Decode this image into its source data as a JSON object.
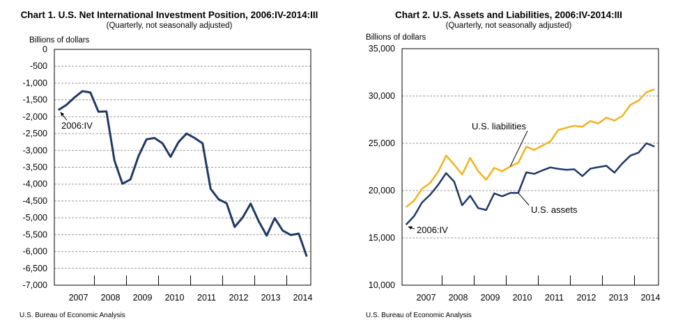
{
  "charts": [
    {
      "title": "Chart 1. U.S. Net International Investment Position, 2006:IV-2014:III",
      "subtitle": "(Quarterly,  not seasonally  adjusted)",
      "source": "U.S. Bureau of Economic Analysis"
    },
    {
      "title": "Chart 2. U.S. Assets and Liabilities, 2006:IV-2014:III",
      "subtitle": "(Quarterly,  not seasonally  adjusted)",
      "source": "U.S. Bureau of Economic Analysis"
    }
  ],
  "chart_data": [
    {
      "type": "line",
      "title": "Chart 1. U.S. Net International Investment Position, 2006:IV-2014:III",
      "subtitle": "(Quarterly,  not seasonally  adjusted)",
      "ylabel": "Billions  of dollars",
      "ylim": [
        -7000,
        0
      ],
      "yticks": [
        0,
        -500,
        -1000,
        -1500,
        -2000,
        -2500,
        -3000,
        -3500,
        -4000,
        -4500,
        -5000,
        -5500,
        -6000,
        -6500,
        -7000
      ],
      "ytick_labels": [
        "0",
        "-500",
        "-1,000",
        "-1,500",
        "-2,000",
        "-2,500",
        "-3,000",
        "-3,500",
        "-4,000",
        "-4,500",
        "-5,000",
        "-5,500",
        "-6,000",
        "-6,500",
        "-7,000"
      ],
      "x": [
        "2006:IV",
        "2007:I",
        "2007:II",
        "2007:III",
        "2007:IV",
        "2008:I",
        "2008:II",
        "2008:III",
        "2008:IV",
        "2009:I",
        "2009:II",
        "2009:III",
        "2009:IV",
        "2010:I",
        "2010:II",
        "2010:III",
        "2010:IV",
        "2011:I",
        "2011:II",
        "2011:III",
        "2011:IV",
        "2012:I",
        "2012:II",
        "2012:III",
        "2012:IV",
        "2013:I",
        "2013:II",
        "2013:III",
        "2013:IV",
        "2014:I",
        "2014:II",
        "2014:III"
      ],
      "x_year_labels": [
        "2007",
        "2008",
        "2009",
        "2010",
        "2011",
        "2012",
        "2013",
        "2014"
      ],
      "grid": true,
      "line_color": "#1f3864",
      "series": [
        {
          "values": [
            -1800,
            -1650,
            -1430,
            -1240,
            -1280,
            -1850,
            -1840,
            -3300,
            -3990,
            -3860,
            -3170,
            -2670,
            -2630,
            -2790,
            -3190,
            -2750,
            -2500,
            -2630,
            -2790,
            -4140,
            -4450,
            -4570,
            -5270,
            -4990,
            -4580,
            -5100,
            -5530,
            -5010,
            -5380,
            -5510,
            -5470,
            -6150
          ]
        }
      ],
      "annotations": [
        {
          "text": "2006:IV",
          "points_to": "2006:IV"
        }
      ]
    },
    {
      "type": "line",
      "title": "Chart 2. U.S. Assets and Liabilities, 2006:IV-2014:III",
      "subtitle": "(Quarterly,  not seasonally  adjusted)",
      "ylabel": "Billions  of dollars",
      "ylim": [
        10000,
        35000
      ],
      "yticks": [
        10000,
        15000,
        20000,
        25000,
        30000,
        35000
      ],
      "ytick_labels": [
        "10,000",
        "15,000",
        "20,000",
        "25,000",
        "30,000",
        "35,000"
      ],
      "x": [
        "2006:IV",
        "2007:I",
        "2007:II",
        "2007:III",
        "2007:IV",
        "2008:I",
        "2008:II",
        "2008:III",
        "2008:IV",
        "2009:I",
        "2009:II",
        "2009:III",
        "2009:IV",
        "2010:I",
        "2010:II",
        "2010:III",
        "2010:IV",
        "2011:I",
        "2011:II",
        "2011:III",
        "2011:IV",
        "2012:I",
        "2012:II",
        "2012:III",
        "2012:IV",
        "2013:I",
        "2013:II",
        "2013:III",
        "2013:IV",
        "2014:I",
        "2014:II",
        "2014:III"
      ],
      "x_year_labels": [
        "2007",
        "2008",
        "2009",
        "2010",
        "2011",
        "2012",
        "2013",
        "2014"
      ],
      "grid": true,
      "series": [
        {
          "name": "U.S. liabilities",
          "color": "#f2b31b",
          "values": [
            18250,
            18950,
            20200,
            20800,
            21990,
            23700,
            22740,
            21700,
            23450,
            22050,
            21150,
            22400,
            22050,
            22550,
            22950,
            24640,
            24300,
            24750,
            25200,
            26410,
            26640,
            26850,
            26750,
            27350,
            27100,
            27710,
            27400,
            27900,
            29070,
            29500,
            30400,
            30700
          ]
        },
        {
          "name": "U.S. assets",
          "color": "#1f3864",
          "values": [
            16400,
            17300,
            18750,
            19550,
            20600,
            21850,
            20950,
            18450,
            19450,
            18150,
            17950,
            19700,
            19400,
            19750,
            19750,
            21930,
            21770,
            22130,
            22450,
            22300,
            22200,
            22250,
            21530,
            22320,
            22480,
            22620,
            21900,
            22880,
            23700,
            24000,
            25000,
            24650
          ]
        }
      ],
      "annotations": [
        {
          "text": "2006:IV",
          "points_to": "2006:IV"
        }
      ]
    }
  ]
}
